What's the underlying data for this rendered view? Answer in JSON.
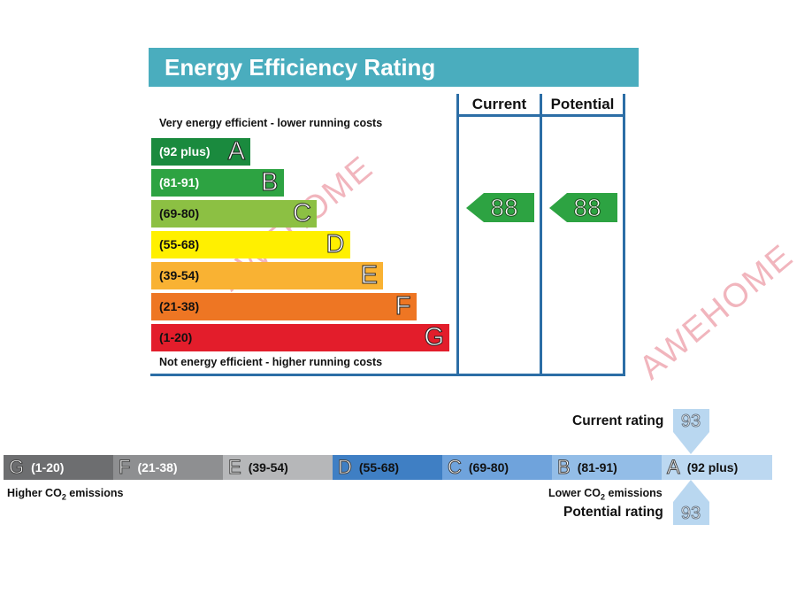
{
  "chart_data": [
    {
      "type": "bar",
      "title": "Energy Efficiency Rating",
      "columns": [
        "Current",
        "Potential"
      ],
      "top_note": "Very energy efficient - lower running costs",
      "bottom_note": "Not energy efficient - higher running costs",
      "bands": [
        {
          "letter": "A",
          "range": "(92 plus)",
          "color": "#1a8a3e",
          "text_color": "#ffffff"
        },
        {
          "letter": "B",
          "range": "(81-91)",
          "color": "#2da342",
          "text_color": "#ffffff"
        },
        {
          "letter": "C",
          "range": "(69-80)",
          "color": "#8cc043",
          "text_color": "#111111"
        },
        {
          "letter": "D",
          "range": "(55-68)",
          "color": "#fff000",
          "text_color": "#111111"
        },
        {
          "letter": "E",
          "range": "(39-54)",
          "color": "#f9b233",
          "text_color": "#111111"
        },
        {
          "letter": "F",
          "range": "(21-38)",
          "color": "#ee7623",
          "text_color": "#111111"
        },
        {
          "letter": "G",
          "range": "(1-20)",
          "color": "#e31d2b",
          "text_color": "#111111"
        }
      ],
      "current": 88,
      "potential": 88,
      "arrow_color": "#2da342"
    },
    {
      "type": "bar",
      "left_label_prefix": "Higher CO",
      "left_label_sub": "2",
      "left_label_suffix": " emissions",
      "right_label_prefix": "Lower CO",
      "right_label_sub": "2",
      "right_label_suffix": " emissions",
      "current_label": "Current rating",
      "potential_label": "Potential rating",
      "current": 93,
      "potential": 93,
      "segments": [
        {
          "letter": "G",
          "range": "(1-20)",
          "color": "#6d6e70",
          "text_color": "#ffffff"
        },
        {
          "letter": "F",
          "range": "(21-38)",
          "color": "#8e8f91",
          "text_color": "#ffffff"
        },
        {
          "letter": "E",
          "range": "(39-54)",
          "color": "#b6b7b9",
          "text_color": "#111111"
        },
        {
          "letter": "D",
          "range": "(55-68)",
          "color": "#3f7fc4",
          "text_color": "#111111"
        },
        {
          "letter": "C",
          "range": "(69-80)",
          "color": "#6fa3dc",
          "text_color": "#111111"
        },
        {
          "letter": "B",
          "range": "(81-91)",
          "color": "#93bde7",
          "text_color": "#111111"
        },
        {
          "letter": "A",
          "range": "(92 plus)",
          "color": "#bcd8f1",
          "text_color": "#111111"
        }
      ]
    }
  ],
  "watermark": "AWEHOME"
}
